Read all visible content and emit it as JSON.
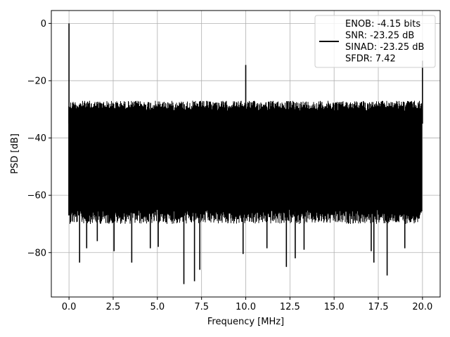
{
  "chart_data": {
    "type": "line",
    "title": "",
    "xlabel": "Frequency [MHz]",
    "ylabel": "PSD [dB]",
    "xlim": [
      -1.0,
      21.0
    ],
    "ylim": [
      -95.5,
      4.5
    ],
    "xticks": [
      0.0,
      2.5,
      5.0,
      7.5,
      10.0,
      12.5,
      15.0,
      17.5,
      20.0
    ],
    "xtick_labels": [
      "0.0",
      "2.5",
      "5.0",
      "7.5",
      "10.0",
      "12.5",
      "15.0",
      "17.5",
      "20.0"
    ],
    "yticks": [
      0,
      -20,
      -40,
      -60,
      -80
    ],
    "ytick_labels": [
      "0",
      "−20",
      "−40",
      "−60",
      "−80"
    ],
    "grid": true,
    "legend_position": "top-right",
    "series": [
      {
        "color": "#000000",
        "legend_lines": [
          "ENOB: -4.15 bits",
          "SNR: -23.25 dB",
          "SINAD: -23.25 dB",
          "SFDR: 7.42"
        ],
        "noise_floor": {
          "x_range": [
            0.0,
            20.0
          ],
          "upper_db": -25,
          "lower_db_typical": -65,
          "lower_db_min": -90
        },
        "peaks": [
          {
            "x": 0.0,
            "y": 0.0
          },
          {
            "x": 10.0,
            "y": -14.5
          },
          {
            "x": 20.0,
            "y": -13.0
          }
        ],
        "deep_dips": [
          {
            "x": 0.6,
            "y": -83.5
          },
          {
            "x": 1.0,
            "y": -78.5
          },
          {
            "x": 1.6,
            "y": -76.0
          },
          {
            "x": 2.55,
            "y": -79.5
          },
          {
            "x": 3.55,
            "y": -83.5
          },
          {
            "x": 4.6,
            "y": -78.5
          },
          {
            "x": 5.05,
            "y": -78.0
          },
          {
            "x": 6.5,
            "y": -91.0
          },
          {
            "x": 7.1,
            "y": -90.0
          },
          {
            "x": 7.4,
            "y": -86.0
          },
          {
            "x": 9.85,
            "y": -80.5
          },
          {
            "x": 11.2,
            "y": -78.5
          },
          {
            "x": 12.3,
            "y": -85.0
          },
          {
            "x": 12.8,
            "y": -82.0
          },
          {
            "x": 13.3,
            "y": -79.0
          },
          {
            "x": 17.1,
            "y": -79.5
          },
          {
            "x": 17.25,
            "y": -83.5
          },
          {
            "x": 18.0,
            "y": -88.0
          },
          {
            "x": 19.0,
            "y": -78.5
          }
        ]
      }
    ]
  }
}
